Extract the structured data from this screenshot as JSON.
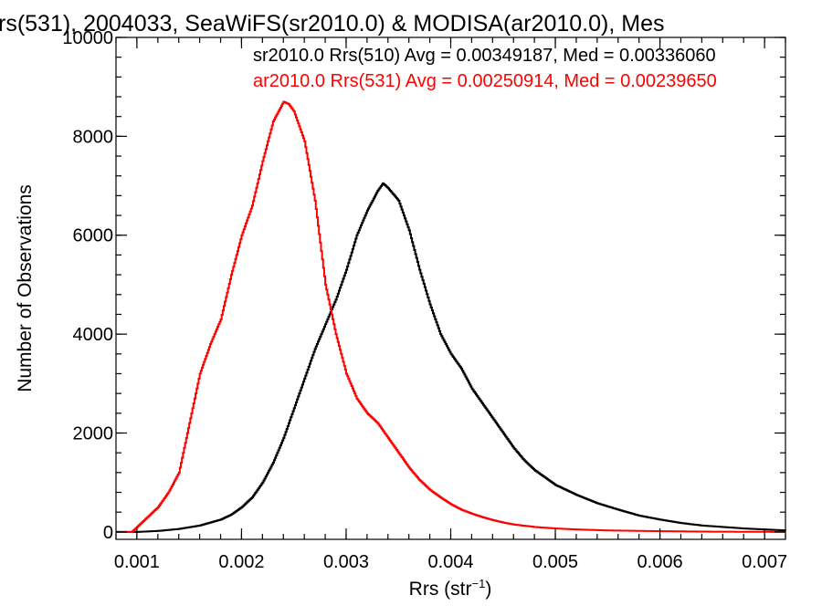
{
  "chart_data": {
    "type": "line",
    "title": "rs(531), 2004033, SeaWiFS(sr2010.0) & MODISA(ar2010.0), Mes",
    "xlabel_main": "Rrs (str",
    "xlabel_sup": "−1",
    "xlabel_close": ")",
    "ylabel": "Number of Observations",
    "xlim": [
      0.0008,
      0.0072
    ],
    "ylim": [
      -150,
      10000
    ],
    "x_ticks": [
      0.001,
      0.002,
      0.003,
      0.004,
      0.005,
      0.006,
      0.007
    ],
    "x_tick_labels": [
      "0.001",
      "0.002",
      "0.003",
      "0.004",
      "0.005",
      "0.006",
      "0.007"
    ],
    "y_ticks": [
      0,
      2000,
      4000,
      6000,
      8000,
      10000
    ],
    "y_tick_labels": [
      "0",
      "2000",
      "4000",
      "6000",
      "8000",
      "10000"
    ],
    "legend": [
      {
        "text": "sr2010.0 Rrs(510) Avg = 0.00349187, Med = 0.00336060",
        "color": "#000000"
      },
      {
        "text": "ar2010.0 Rrs(531) Avg = 0.00250914, Med = 0.00239650",
        "color": "#ff0000"
      }
    ],
    "series": [
      {
        "color": "#000000",
        "points": [
          [
            0.0008,
            0
          ],
          [
            0.001,
            0
          ],
          [
            0.0012,
            20
          ],
          [
            0.0014,
            60
          ],
          [
            0.0016,
            130
          ],
          [
            0.0018,
            250
          ],
          [
            0.0019,
            350
          ],
          [
            0.002,
            500
          ],
          [
            0.0021,
            700
          ],
          [
            0.0022,
            1000
          ],
          [
            0.0023,
            1400
          ],
          [
            0.0024,
            1900
          ],
          [
            0.0025,
            2500
          ],
          [
            0.0026,
            3100
          ],
          [
            0.0027,
            3700
          ],
          [
            0.0028,
            4200
          ],
          [
            0.0029,
            4700
          ],
          [
            0.003,
            5300
          ],
          [
            0.0031,
            6000
          ],
          [
            0.0032,
            6500
          ],
          [
            0.0033,
            6900
          ],
          [
            0.00335,
            7050
          ],
          [
            0.0034,
            6950
          ],
          [
            0.0035,
            6700
          ],
          [
            0.0036,
            6100
          ],
          [
            0.0037,
            5300
          ],
          [
            0.0038,
            4600
          ],
          [
            0.0039,
            4000
          ],
          [
            0.004,
            3600
          ],
          [
            0.0041,
            3300
          ],
          [
            0.0042,
            2900
          ],
          [
            0.0043,
            2600
          ],
          [
            0.0044,
            2300
          ],
          [
            0.0045,
            2000
          ],
          [
            0.0046,
            1700
          ],
          [
            0.0047,
            1450
          ],
          [
            0.0048,
            1250
          ],
          [
            0.0049,
            1100
          ],
          [
            0.005,
            950
          ],
          [
            0.0052,
            750
          ],
          [
            0.0054,
            580
          ],
          [
            0.0056,
            450
          ],
          [
            0.0058,
            330
          ],
          [
            0.006,
            250
          ],
          [
            0.0062,
            180
          ],
          [
            0.0064,
            130
          ],
          [
            0.0066,
            100
          ],
          [
            0.0068,
            70
          ],
          [
            0.007,
            50
          ],
          [
            0.0072,
            30
          ]
        ]
      },
      {
        "color": "#ff0000",
        "points": [
          [
            0.0008,
            0
          ],
          [
            0.00095,
            0
          ],
          [
            0.001,
            100
          ],
          [
            0.0011,
            300
          ],
          [
            0.0012,
            500
          ],
          [
            0.0013,
            800
          ],
          [
            0.0014,
            1200
          ],
          [
            0.0015,
            2200
          ],
          [
            0.0016,
            3200
          ],
          [
            0.0017,
            3800
          ],
          [
            0.0018,
            4300
          ],
          [
            0.0019,
            5200
          ],
          [
            0.002,
            6000
          ],
          [
            0.0021,
            6600
          ],
          [
            0.0022,
            7500
          ],
          [
            0.0023,
            8300
          ],
          [
            0.0024,
            8700
          ],
          [
            0.00245,
            8650
          ],
          [
            0.0025,
            8500
          ],
          [
            0.0026,
            7900
          ],
          [
            0.0027,
            6700
          ],
          [
            0.0028,
            5000
          ],
          [
            0.0029,
            4000
          ],
          [
            0.003,
            3200
          ],
          [
            0.0031,
            2700
          ],
          [
            0.0032,
            2400
          ],
          [
            0.0033,
            2200
          ],
          [
            0.0034,
            1900
          ],
          [
            0.0035,
            1600
          ],
          [
            0.0036,
            1300
          ],
          [
            0.0037,
            1050
          ],
          [
            0.0038,
            850
          ],
          [
            0.0039,
            700
          ],
          [
            0.004,
            560
          ],
          [
            0.0041,
            450
          ],
          [
            0.0042,
            370
          ],
          [
            0.0043,
            300
          ],
          [
            0.0044,
            240
          ],
          [
            0.0045,
            190
          ],
          [
            0.0046,
            150
          ],
          [
            0.0048,
            100
          ],
          [
            0.005,
            70
          ],
          [
            0.0052,
            50
          ],
          [
            0.0055,
            30
          ],
          [
            0.006,
            15
          ],
          [
            0.0065,
            5
          ],
          [
            0.0072,
            0
          ]
        ]
      }
    ]
  }
}
